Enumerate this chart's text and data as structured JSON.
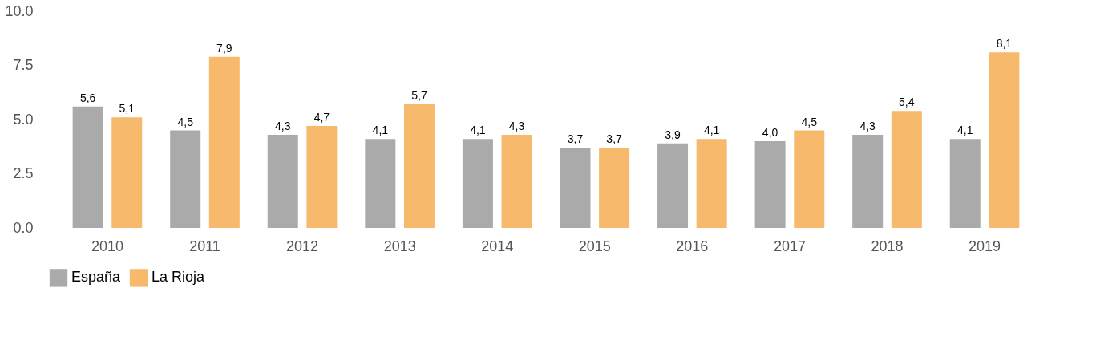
{
  "chart_data": {
    "type": "bar",
    "categories": [
      "2010",
      "2011",
      "2012",
      "2013",
      "2014",
      "2015",
      "2016",
      "2017",
      "2018",
      "2019"
    ],
    "series": [
      {
        "name": "España",
        "color": "#aaaaaa",
        "values": [
          5.6,
          4.5,
          4.3,
          4.1,
          4.1,
          3.7,
          3.9,
          4.0,
          4.3,
          4.1
        ],
        "value_labels": [
          "5,6",
          "4,5",
          "4,3",
          "4,1",
          "4,1",
          "3,7",
          "3,9",
          "4,0",
          "4,3",
          "4,1"
        ]
      },
      {
        "name": "La Rioja",
        "color": "#f7b96b",
        "values": [
          5.1,
          7.9,
          4.7,
          5.7,
          4.3,
          3.7,
          4.1,
          4.5,
          5.4,
          8.1
        ],
        "value_labels": [
          "5,1",
          "7,9",
          "4,7",
          "5,7",
          "4,3",
          "3,7",
          "4,1",
          "4,5",
          "5,4",
          "8,1"
        ]
      }
    ],
    "ylim": [
      0,
      10
    ],
    "yticks": [
      {
        "value": 0,
        "label": "0.0"
      },
      {
        "value": 2.5,
        "label": "2.5"
      },
      {
        "value": 5,
        "label": "5.0"
      },
      {
        "value": 7.5,
        "label": "7.5"
      },
      {
        "value": 10,
        "label": "10.0"
      }
    ],
    "grid": false,
    "legend": "bottom"
  }
}
